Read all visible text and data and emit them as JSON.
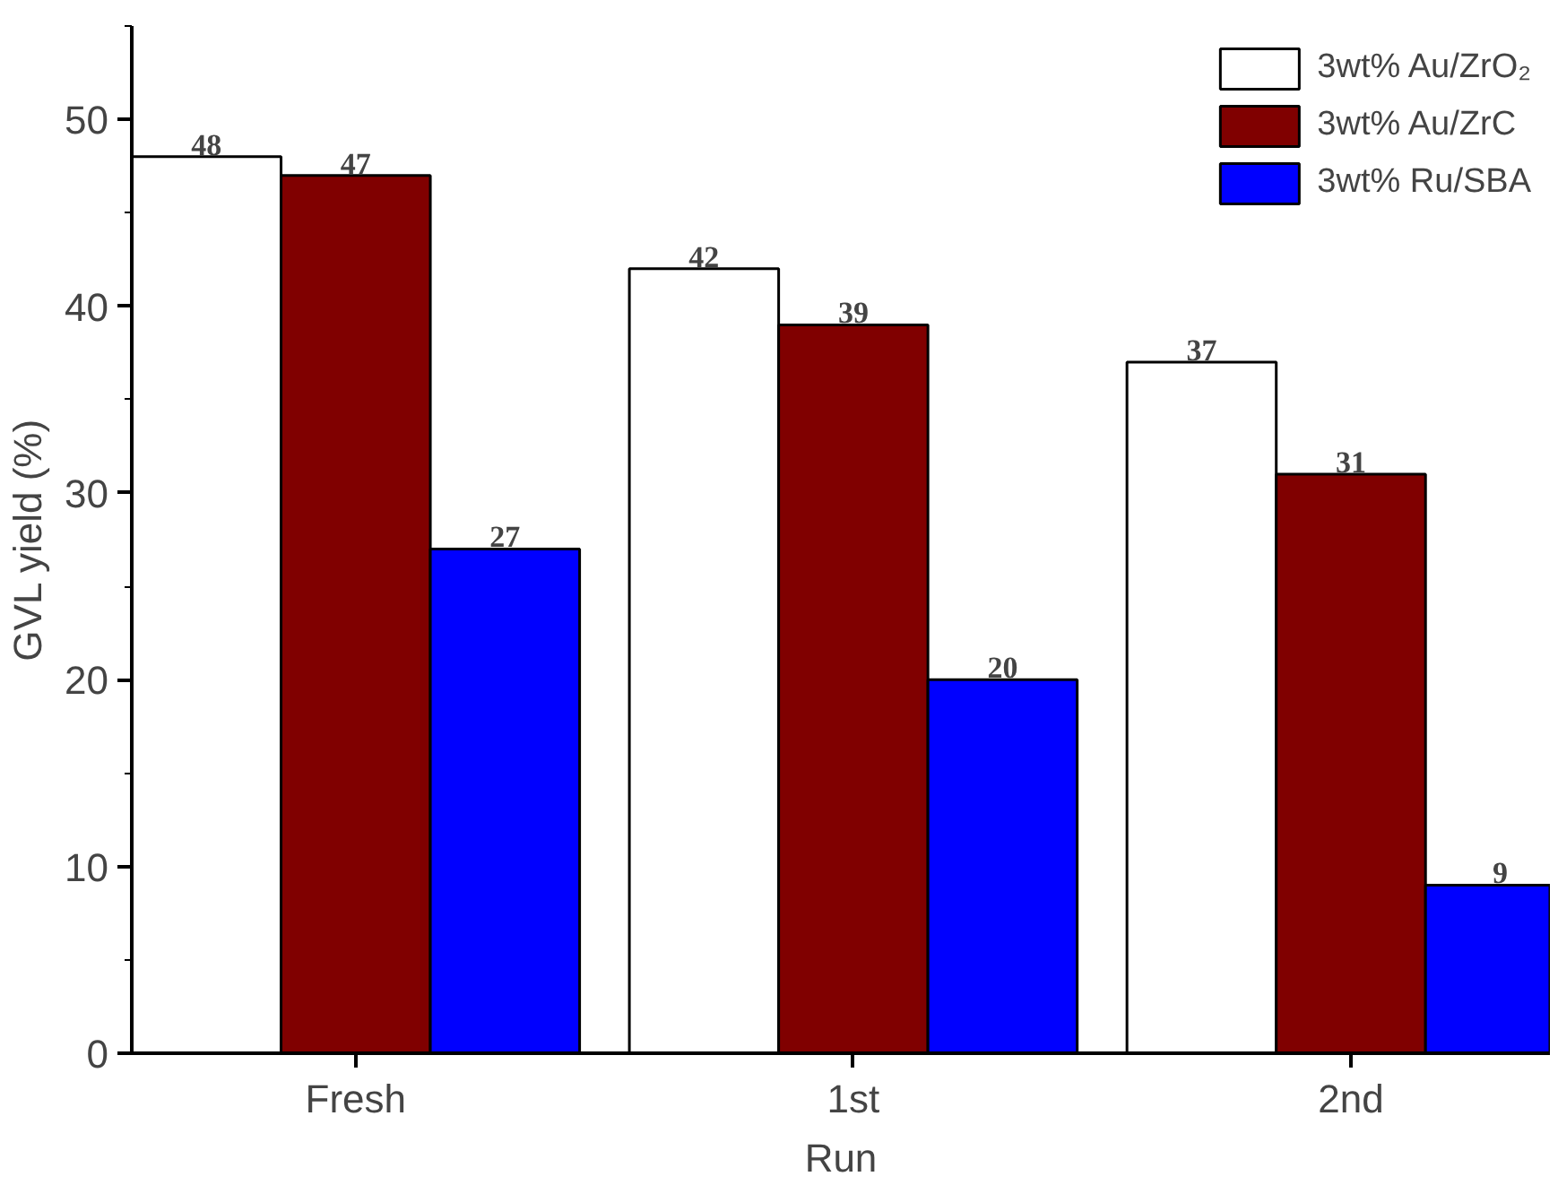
{
  "chart_data": {
    "type": "bar",
    "xlabel": "Run",
    "ylabel": "GVL yield (%)",
    "categories": [
      "Fresh",
      "1st",
      "2nd"
    ],
    "series": [
      {
        "name": "3wt% Au/ZrO₂",
        "color": "#ffffff",
        "values": [
          48,
          42,
          37
        ]
      },
      {
        "name": "3wt% Au/ZrC",
        "color": "#800000",
        "values": [
          47,
          39,
          31
        ]
      },
      {
        "name": "3wt% Ru/SBA",
        "color": "#0000ff",
        "values": [
          27,
          20,
          9
        ]
      }
    ],
    "ylim": [
      0,
      55
    ],
    "yticks": [
      0,
      10,
      20,
      30,
      40,
      50
    ],
    "data_labels": true,
    "grid": false,
    "legend": "top right"
  }
}
